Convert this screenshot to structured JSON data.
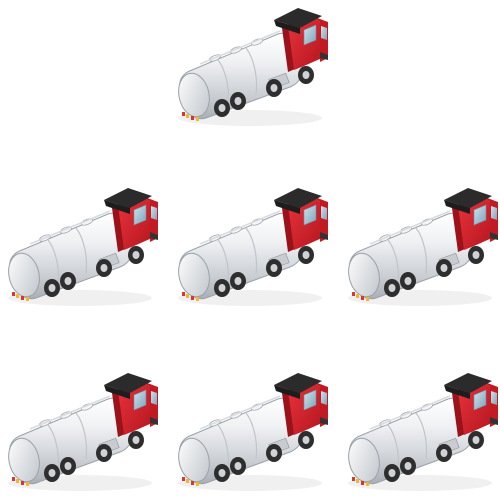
{
  "scene": {
    "subject": "tanker-truck",
    "count": 7,
    "rows": [
      1,
      3,
      3
    ]
  },
  "colors": {
    "background": "#ffffff",
    "cab": "#d8232e",
    "cab_dark": "#a3141d",
    "cab_roof": "#2b2b2b",
    "window": "#8fb3c7",
    "tank": "#e9ecef",
    "tank_shade": "#b9bec4",
    "wheel": "#2e2e2e",
    "hub": "#cfd3d6",
    "tail_light_red": "#e0332b",
    "tail_light_amber": "#f2b632"
  }
}
